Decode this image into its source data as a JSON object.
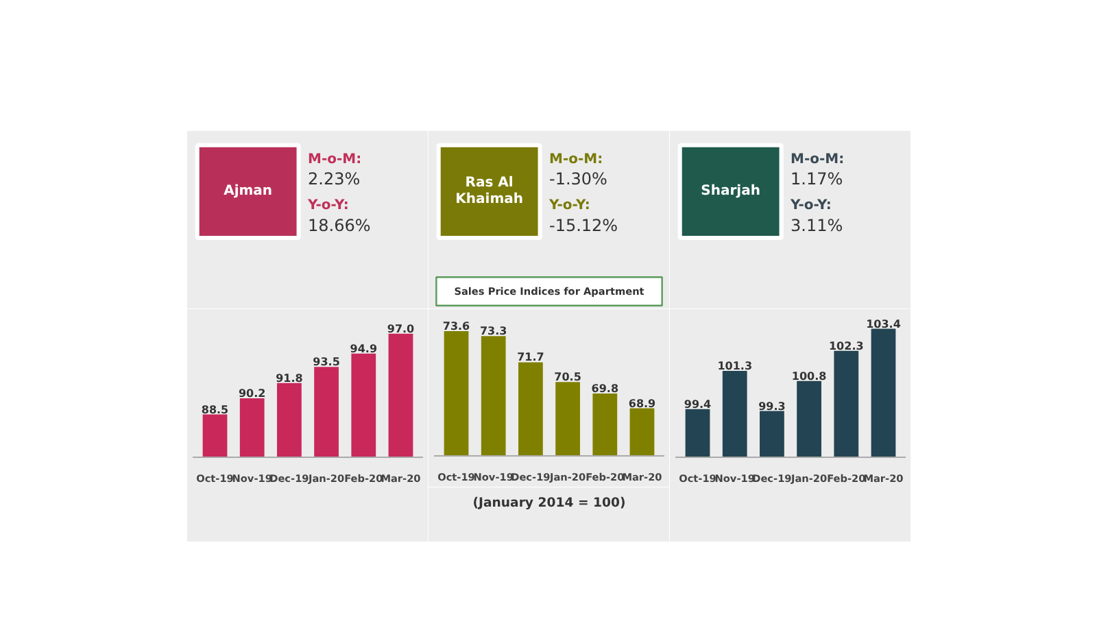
{
  "chart_data": [
    {
      "type": "bar",
      "title": "Ajman",
      "annotations": [
        "M-o-M:",
        "2.23%",
        "Y-o-Y:",
        "18.66%"
      ],
      "categories": [
        "Oct-19",
        "Nov-19",
        "Dec-19",
        "Jan-20",
        "Feb-20",
        "Mar-20"
      ],
      "values": [
        88.5,
        90.2,
        91.8,
        93.5,
        94.9,
        97.0
      ],
      "color": "#c8285a",
      "ylim": [
        84,
        99
      ],
      "value_labels": [
        "88.5",
        "90.2",
        "91.8",
        "93.5",
        "94.9",
        "97.0"
      ],
      "tick_labels": "x",
      "grid": false
    },
    {
      "type": "bar",
      "title": "Ras Al Khaimah",
      "subtitle": "Sales Price Indices for Apartment",
      "annotations": [
        "M-o-M:",
        "-1.30%",
        "Y-o-Y:",
        "-15.12%",
        "(January 2014 = 100)"
      ],
      "categories": [
        "Oct-19",
        "Nov-19",
        "Dec-19",
        "Jan-20",
        "Feb-20",
        "Mar-20"
      ],
      "values": [
        73.6,
        73.3,
        71.7,
        70.5,
        69.8,
        68.9
      ],
      "color": "#808000",
      "ylim": [
        66,
        74.6
      ],
      "value_labels": [
        "73.6",
        "73.3",
        "71.7",
        "70.5",
        "69.8",
        "68.9"
      ],
      "tick_labels": "x",
      "grid": false
    },
    {
      "type": "bar",
      "title": "Sharjah",
      "annotations": [
        "M-o-M:",
        "1.17%",
        "Y-o-Y:",
        "3.11%"
      ],
      "categories": [
        "Oct-19",
        "Nov-19",
        "Dec-19",
        "Jan-20",
        "Feb-20",
        "Mar-20"
      ],
      "values": [
        99.4,
        101.3,
        99.3,
        100.8,
        102.3,
        103.4
      ],
      "color": "#234452",
      "ylim": [
        97,
        104.1
      ],
      "value_labels": [
        "99.4",
        "101.3",
        "99.3",
        "100.8",
        "102.3",
        "103.4"
      ],
      "tick_labels": "x",
      "grid": false
    }
  ]
}
